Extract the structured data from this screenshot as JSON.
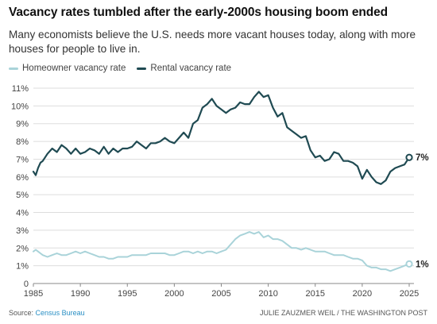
{
  "title": "Vacancy rates tumbled after the early-2000s housing boom ended",
  "subtitle": "Many economists believe the U.S. needs more vacant houses today, along with more houses for people to live in.",
  "footer": {
    "source_label": "Source:",
    "source_name": "Census Bureau",
    "credit": "JULIE ZAUZMER WEIL / THE WASHINGTON POST"
  },
  "colors": {
    "homeowner": "#a9d3d9",
    "rental": "#1f4a52",
    "grid": "#dddddd",
    "source_link": "#2a8fc4"
  },
  "chart_data": {
    "type": "line",
    "title": "Vacancy rates tumbled after the early-2000s housing boom ended",
    "xlabel": "",
    "ylabel": "",
    "xlim": [
      1985,
      2025
    ],
    "ylim": [
      0,
      11
    ],
    "grid": true,
    "legend_position": "top-left",
    "x_ticks": [
      "1985",
      "1990",
      "1995",
      "2000",
      "2005",
      "2010",
      "2015",
      "2020",
      "2025"
    ],
    "y_ticks": [
      "0",
      "1%",
      "2%",
      "3%",
      "4%",
      "5%",
      "6%",
      "7%",
      "8%",
      "9%",
      "10%",
      "11%"
    ],
    "series": [
      {
        "name": "Homeowner vacancy rate",
        "color": "#a9d3d9",
        "end_label": "1%",
        "x": [
          1985,
          1985.25,
          1985.5,
          1985.75,
          1986,
          1986.5,
          1987,
          1987.5,
          1988,
          1988.5,
          1989,
          1989.5,
          1990,
          1990.5,
          1991,
          1991.5,
          1992,
          1992.5,
          1993,
          1993.5,
          1994,
          1994.5,
          1995,
          1995.5,
          1996,
          1996.5,
          1997,
          1997.5,
          1998,
          1998.5,
          1999,
          1999.5,
          2000,
          2000.5,
          2001,
          2001.5,
          2002,
          2002.5,
          2003,
          2003.5,
          2004,
          2004.5,
          2005,
          2005.5,
          2006,
          2006.5,
          2007,
          2007.5,
          2008,
          2008.5,
          2009,
          2009.5,
          2010,
          2010.5,
          2011,
          2011.5,
          2012,
          2012.5,
          2013,
          2013.5,
          2014,
          2014.5,
          2015,
          2015.5,
          2016,
          2016.5,
          2017,
          2017.5,
          2018,
          2018.5,
          2019,
          2019.5,
          2020,
          2020.5,
          2021,
          2021.5,
          2022,
          2022.5,
          2023,
          2023.5,
          2024,
          2024.5,
          2025
        ],
        "values": [
          1.8,
          1.9,
          1.8,
          1.7,
          1.6,
          1.5,
          1.6,
          1.7,
          1.6,
          1.6,
          1.7,
          1.8,
          1.7,
          1.8,
          1.7,
          1.6,
          1.5,
          1.5,
          1.4,
          1.4,
          1.5,
          1.5,
          1.5,
          1.6,
          1.6,
          1.6,
          1.6,
          1.7,
          1.7,
          1.7,
          1.7,
          1.6,
          1.6,
          1.7,
          1.8,
          1.8,
          1.7,
          1.8,
          1.7,
          1.8,
          1.8,
          1.7,
          1.8,
          1.9,
          2.2,
          2.5,
          2.7,
          2.8,
          2.9,
          2.8,
          2.9,
          2.6,
          2.7,
          2.5,
          2.5,
          2.4,
          2.2,
          2.0,
          2.0,
          1.9,
          2.0,
          1.9,
          1.8,
          1.8,
          1.8,
          1.7,
          1.6,
          1.6,
          1.6,
          1.5,
          1.4,
          1.4,
          1.3,
          1.0,
          0.9,
          0.9,
          0.8,
          0.8,
          0.7,
          0.8,
          0.9,
          1.0,
          1.1
        ]
      },
      {
        "name": "Rental vacancy rate",
        "color": "#1f4a52",
        "end_label": "7%",
        "x": [
          1985,
          1985.25,
          1985.5,
          1985.75,
          1986,
          1986.5,
          1987,
          1987.5,
          1988,
          1988.5,
          1989,
          1989.5,
          1990,
          1990.5,
          1991,
          1991.5,
          1992,
          1992.5,
          1993,
          1993.5,
          1994,
          1994.5,
          1995,
          1995.5,
          1996,
          1996.5,
          1997,
          1997.5,
          1998,
          1998.5,
          1999,
          1999.5,
          2000,
          2000.5,
          2001,
          2001.5,
          2002,
          2002.5,
          2003,
          2003.5,
          2004,
          2004.5,
          2005,
          2005.5,
          2006,
          2006.5,
          2007,
          2007.5,
          2008,
          2008.5,
          2009,
          2009.5,
          2010,
          2010.5,
          2011,
          2011.5,
          2012,
          2012.5,
          2013,
          2013.5,
          2014,
          2014.5,
          2015,
          2015.5,
          2016,
          2016.5,
          2017,
          2017.5,
          2018,
          2018.5,
          2019,
          2019.5,
          2020,
          2020.5,
          2021,
          2021.5,
          2022,
          2022.5,
          2023,
          2023.5,
          2024,
          2024.5,
          2025
        ],
        "values": [
          6.3,
          6.1,
          6.5,
          6.8,
          6.9,
          7.3,
          7.6,
          7.4,
          7.8,
          7.6,
          7.3,
          7.6,
          7.3,
          7.4,
          7.6,
          7.5,
          7.3,
          7.7,
          7.3,
          7.6,
          7.4,
          7.6,
          7.6,
          7.7,
          8.0,
          7.8,
          7.6,
          7.9,
          7.9,
          8.0,
          8.2,
          8.0,
          7.9,
          8.2,
          8.5,
          8.2,
          9.0,
          9.2,
          9.9,
          10.1,
          10.4,
          10.0,
          9.8,
          9.6,
          9.8,
          9.9,
          10.2,
          10.1,
          10.1,
          10.5,
          10.8,
          10.5,
          10.6,
          9.9,
          9.4,
          9.6,
          8.8,
          8.6,
          8.4,
          8.2,
          8.3,
          7.5,
          7.1,
          7.2,
          6.9,
          7.0,
          7.4,
          7.3,
          6.9,
          6.9,
          6.8,
          6.6,
          5.9,
          6.4,
          6.0,
          5.7,
          5.6,
          5.8,
          6.3,
          6.5,
          6.6,
          6.7,
          7.1
        ]
      }
    ]
  }
}
